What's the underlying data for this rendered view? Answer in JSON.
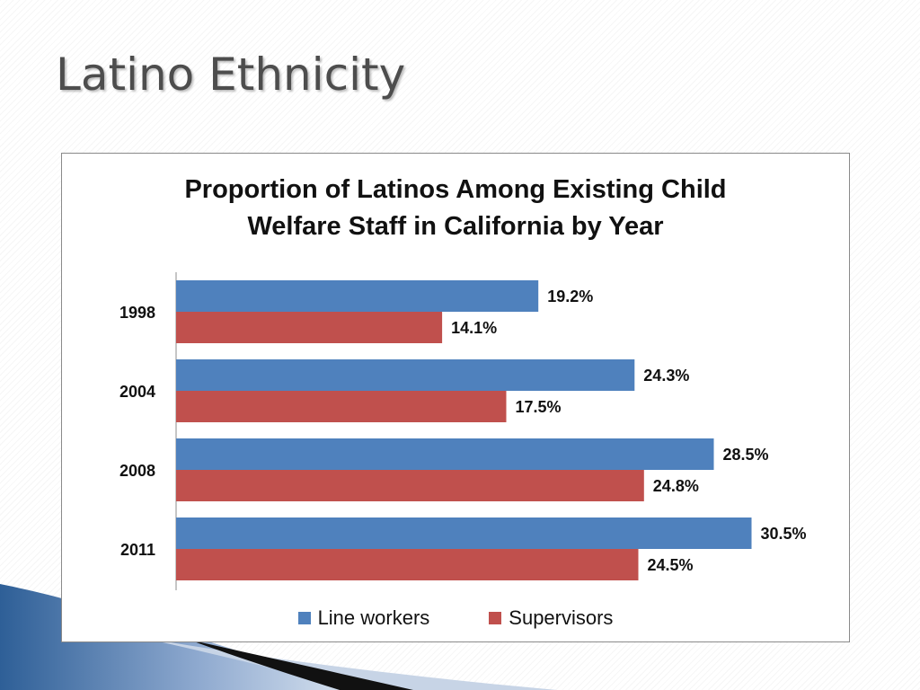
{
  "slide": {
    "title": "Latino Ethnicity"
  },
  "colors": {
    "line_workers": "#4f81bd",
    "supervisors": "#c0504d"
  },
  "chart_data": {
    "type": "bar",
    "orientation": "horizontal",
    "title_lines": [
      "Proportion of Latinos Among Existing Child",
      "Welfare Staff in California by Year"
    ],
    "categories": [
      "1998",
      "2004",
      "2008",
      "2011"
    ],
    "series": [
      {
        "name": "Line workers",
        "values": [
          19.2,
          24.3,
          28.5,
          30.5
        ],
        "labels": [
          "19.2%",
          "24.3%",
          "28.5%",
          "30.5%"
        ]
      },
      {
        "name": "Supervisors",
        "values": [
          14.1,
          17.5,
          24.8,
          24.5
        ],
        "labels": [
          "14.1%",
          "17.5%",
          "24.8%",
          "24.5%"
        ]
      }
    ],
    "xlim": [
      0,
      35
    ],
    "grid": false,
    "legend": "bottom"
  }
}
